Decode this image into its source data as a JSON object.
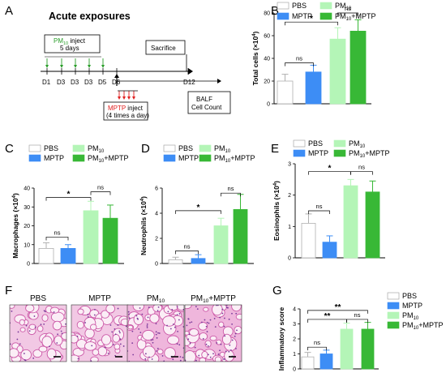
{
  "colors": {
    "PBS": "#ffffff",
    "MPTP": "#3d8df5",
    "PM10": "#b4f5b7",
    "PM10+MPTP": "#38b836",
    "day_green": "#2a9e2a",
    "day_red": "#e02020"
  },
  "panel_a": {
    "label": "A",
    "title": "Acute exposures",
    "pm_inject_prefix": "PM",
    "pm_inject_sub": "10",
    "pm_inject_suffix": " inject",
    "pm_days": "5 days",
    "sacrifice": "Sacrifice",
    "days": [
      "D1",
      "D3",
      "D3",
      "D3",
      "D5",
      "D6",
      "D12"
    ],
    "mptp_inject_prefix": "MPTP",
    "mptp_inject_suffix": " inject",
    "mptp_times": "(4 times a day)",
    "balf_line1": "BALF",
    "balf_line2": "Cell Count"
  },
  "legend_labels": {
    "pbs": "PBS",
    "mptp": "MPTP",
    "pm10_base": "PM",
    "pm10_sub": "10",
    "combo_base": "PM",
    "combo_sub": "10",
    "combo_suffix": "+MPTP"
  },
  "chart_data": [
    {
      "panel": "B",
      "type": "bar",
      "categories": [
        "PBS",
        "MPTP",
        "PM10",
        "PM10+MPTP"
      ],
      "values": [
        20,
        28,
        57,
        64
      ],
      "errors": [
        6,
        6,
        10,
        10
      ],
      "ylabel_base": "Total cells (×10",
      "ylabel_exp": "4",
      "ylabel_end": ")",
      "ylim": [
        0,
        80
      ],
      "yticks": [
        "0",
        "20",
        "40",
        "60",
        "80"
      ],
      "annotations": [
        {
          "text": "ns",
          "from": 0,
          "to": 1,
          "level": 36
        },
        {
          "text": "*",
          "from": 0,
          "to": 2,
          "level": 72
        },
        {
          "text": "ns",
          "from": 2,
          "to": 3,
          "level": 80
        }
      ]
    },
    {
      "panel": "C",
      "type": "bar",
      "categories": [
        "PBS",
        "MPTP",
        "PM10",
        "PM10+MPTP"
      ],
      "values": [
        8,
        8,
        28,
        24
      ],
      "errors": [
        3,
        2,
        5,
        7
      ],
      "ylabel_base": "Macrophages (×10",
      "ylabel_exp": "4",
      "ylabel_end": ")",
      "ylim": [
        0,
        40
      ],
      "yticks": [
        "0",
        "10",
        "20",
        "30",
        "40"
      ],
      "annotations": [
        {
          "text": "ns",
          "from": 0,
          "to": 1,
          "level": 14
        },
        {
          "text": "*",
          "from": 0,
          "to": 2,
          "level": 35
        },
        {
          "text": "ns",
          "from": 2,
          "to": 3,
          "level": 38
        }
      ]
    },
    {
      "panel": "D",
      "type": "bar",
      "categories": [
        "PBS",
        "MPTP",
        "PM10",
        "PM10+MPTP"
      ],
      "values": [
        0.3,
        0.4,
        3.0,
        4.3
      ],
      "errors": [
        0.2,
        0.3,
        0.6,
        1.2
      ],
      "ylabel_base": "Neutrophils (×10",
      "ylabel_exp": "4",
      "ylabel_end": ")",
      "ylim": [
        0,
        6
      ],
      "yticks": [
        "0",
        "2",
        "4",
        "6"
      ],
      "annotations": [
        {
          "text": "ns",
          "from": 0,
          "to": 1,
          "level": 1.0
        },
        {
          "text": "*",
          "from": 0,
          "to": 2,
          "level": 4.2
        },
        {
          "text": "ns",
          "from": 2,
          "to": 3,
          "level": 5.6
        }
      ]
    },
    {
      "panel": "E",
      "type": "bar",
      "categories": [
        "PBS",
        "MPTP",
        "PM10",
        "PM10+MPTP"
      ],
      "values": [
        1.1,
        0.5,
        2.3,
        2.1
      ],
      "errors": [
        0.3,
        0.2,
        0.2,
        0.35
      ],
      "ylabel_base": "Eosinophils (×10",
      "ylabel_exp": "4",
      "ylabel_end": ")",
      "ylim": [
        0,
        3
      ],
      "yticks": [
        "0",
        "1",
        "2",
        "3"
      ],
      "annotations": [
        {
          "text": "ns",
          "from": 0,
          "to": 1,
          "level": 1.5
        },
        {
          "text": "*",
          "from": 0,
          "to": 2,
          "level": 2.75
        },
        {
          "text": "ns",
          "from": 2,
          "to": 3,
          "level": 2.75
        }
      ]
    },
    {
      "panel": "G",
      "type": "bar",
      "categories": [
        "PBS",
        "MPTP",
        "PM10",
        "PM10+MPTP"
      ],
      "values": [
        0.8,
        1.0,
        2.65,
        2.65
      ],
      "errors": [
        0.3,
        0.25,
        0.4,
        0.45
      ],
      "ylabel_base": "Inflammatory score",
      "ylabel_exp": "",
      "ylabel_end": "",
      "ylim": [
        0,
        4
      ],
      "yticks": [
        "0",
        "1",
        "2",
        "3",
        "4"
      ],
      "annotations": [
        {
          "text": "ns",
          "from": 0,
          "to": 1,
          "level": 1.45
        },
        {
          "text": "**",
          "from": 0,
          "to": 2,
          "level": 3.3
        },
        {
          "text": "**",
          "from": 0,
          "to": 3,
          "level": 3.9
        },
        {
          "text": "ns",
          "from": 2,
          "to": 3,
          "level": 3.3
        }
      ]
    }
  ],
  "panel_f": {
    "label": "F",
    "images": [
      {
        "label_base": "PBS",
        "label_sub": "",
        "label_suffix": ""
      },
      {
        "label_base": "MPTP",
        "label_sub": "",
        "label_suffix": ""
      },
      {
        "label_base": "PM",
        "label_sub": "10",
        "label_suffix": ""
      },
      {
        "label_base": "PM",
        "label_sub": "10",
        "label_suffix": "+MPTP"
      }
    ]
  }
}
